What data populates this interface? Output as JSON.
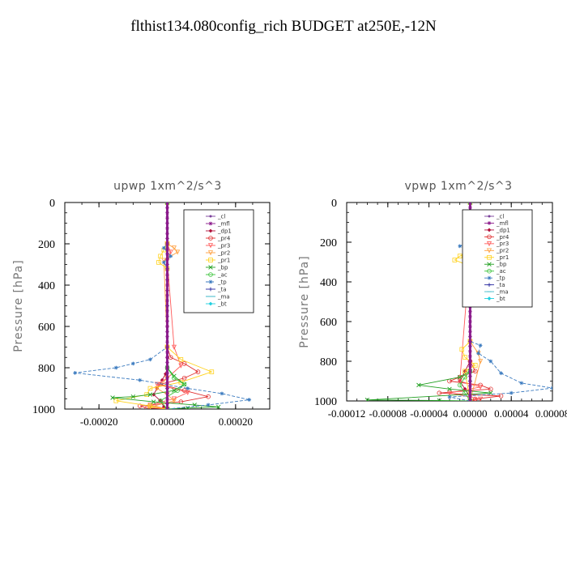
{
  "title": "flthist134.080config_rich  BUDGET at250E,-12N",
  "chart_data": [
    {
      "type": "line",
      "title": "upwp   1xm^2/s^3",
      "ylabel": "Pressure [hPa]",
      "ylim": [
        1000,
        0
      ],
      "xlim": [
        -0.0003,
        0.0003
      ],
      "xticks": [
        "-0.00020",
        "0.00000",
        "0.00020"
      ],
      "yticks": [
        "0",
        "200",
        "400",
        "600",
        "800",
        "1000"
      ],
      "legend_position": "top-right",
      "series": [
        {
          "name": "_cl",
          "color": "#7a3f9a",
          "marker": "dot",
          "dash": "",
          "x": [
            0,
            0,
            0,
            0,
            0,
            0,
            0,
            0,
            0,
            0,
            0,
            0,
            0,
            0,
            0,
            0,
            0,
            0,
            0,
            0,
            0,
            0,
            0,
            0,
            0,
            0,
            0,
            0,
            0,
            0,
            0,
            0,
            0,
            0,
            0,
            0,
            0,
            0,
            0,
            0,
            0
          ],
          "y": [
            0,
            25,
            50,
            75,
            100,
            125,
            150,
            175,
            200,
            225,
            250,
            275,
            300,
            325,
            350,
            375,
            400,
            425,
            450,
            475,
            500,
            525,
            550,
            575,
            600,
            625,
            650,
            675,
            700,
            725,
            750,
            775,
            800,
            825,
            850,
            875,
            900,
            925,
            950,
            975,
            1000
          ]
        },
        {
          "name": "_mfl",
          "color": "#8b1a8b",
          "marker": "star",
          "dash": "",
          "x": [
            0,
            0,
            0,
            0,
            0,
            0,
            0,
            0,
            0,
            0,
            0,
            0,
            0,
            0,
            0,
            0,
            0,
            0,
            0,
            0,
            0,
            0,
            0,
            0,
            0,
            0,
            0,
            0,
            0,
            0,
            0,
            0,
            0,
            0,
            0,
            0,
            0,
            0,
            0,
            0,
            0
          ],
          "y": [
            0,
            25,
            50,
            75,
            100,
            125,
            150,
            175,
            200,
            225,
            250,
            275,
            300,
            325,
            350,
            375,
            400,
            425,
            450,
            475,
            500,
            525,
            550,
            575,
            600,
            625,
            650,
            675,
            700,
            725,
            750,
            775,
            800,
            825,
            850,
            875,
            900,
            925,
            950,
            975,
            1000
          ]
        },
        {
          "name": "_dp1",
          "color": "#b0103a",
          "marker": "diamond",
          "dash": "",
          "x": [
            0,
            0,
            0,
            0,
            0,
            -5e-06,
            -1.5e-05,
            -3e-05,
            -4e-05,
            -2e-05,
            -1e-05,
            0
          ],
          "y": [
            0,
            200,
            600,
            750,
            800,
            830,
            860,
            900,
            930,
            960,
            990,
            1000
          ]
        },
        {
          "name": "_pr4",
          "color": "#e03030",
          "marker": "circle",
          "dash": "",
          "x": [
            0,
            0,
            0,
            1e-05,
            5e-05,
            9e-05,
            5e-05,
            -2e-05,
            5e-05,
            0.00012,
            4e-05,
            -8e-05,
            -6e-05,
            0
          ],
          "y": [
            0,
            200,
            700,
            750,
            780,
            820,
            850,
            880,
            910,
            940,
            965,
            985,
            995,
            1000
          ]
        },
        {
          "name": "_pr3",
          "color": "#ff5a5a",
          "marker": "tri",
          "dash": "",
          "x": [
            0,
            0,
            1e-05,
            0,
            2e-05,
            4e-05,
            0,
            -3e-05,
            6e-05,
            2e-05,
            -5e-05,
            0
          ],
          "y": [
            0,
            200,
            240,
            280,
            700,
            790,
            850,
            880,
            920,
            950,
            980,
            1000
          ]
        },
        {
          "name": "_pr2",
          "color": "#ffa040",
          "marker": "tri",
          "dash": "",
          "x": [
            0,
            0,
            2e-05,
            3e-05,
            -1e-05,
            0,
            0,
            -3e-05,
            0,
            2e-05,
            -5e-05,
            0
          ],
          "y": [
            0,
            200,
            220,
            240,
            280,
            700,
            850,
            900,
            930,
            960,
            990,
            1000
          ]
        },
        {
          "name": "_pr1",
          "color": "#ffd21e",
          "marker": "square",
          "dash": "",
          "x": [
            0,
            0,
            -1e-05,
            -2e-05,
            -2.5e-05,
            0,
            0,
            4e-05,
            0.00013,
            4e-05,
            -5e-05,
            -6e-05,
            -0.00015,
            -5e-05,
            0
          ],
          "y": [
            0,
            200,
            230,
            260,
            290,
            320,
            700,
            760,
            820,
            870,
            900,
            930,
            960,
            985,
            1000
          ]
        },
        {
          "name": "_bp",
          "color": "#22a022",
          "marker": "x",
          "dash": "",
          "x": [
            0,
            0,
            2e-05,
            5e-05,
            2e-05,
            -5e-05,
            -0.0001,
            -0.00016,
            -4e-05,
            8e-05,
            0.00015,
            6e-05,
            0
          ],
          "y": [
            0,
            800,
            840,
            880,
            910,
            930,
            940,
            945,
            965,
            980,
            990,
            995,
            1000
          ]
        },
        {
          "name": "_ac",
          "color": "#3cc43c",
          "marker": "circle",
          "dash": "",
          "x": [
            0,
            0,
            2e-05,
            5e-05,
            3e-05,
            -2e-05,
            0
          ],
          "y": [
            0,
            800,
            850,
            880,
            910,
            960,
            1000
          ]
        },
        {
          "name": "_tp",
          "color": "#3a7abf",
          "marker": "star",
          "dash": "4,2",
          "x": [
            0,
            0,
            -1e-05,
            1e-05,
            -1e-05,
            0,
            0,
            -5e-05,
            -0.0001,
            -0.00015,
            -0.00027,
            -8e-05,
            6e-05,
            0.00016,
            0.00024,
            0.00012,
            0
          ],
          "y": [
            0,
            200,
            220,
            260,
            290,
            320,
            700,
            760,
            780,
            800,
            825,
            860,
            900,
            925,
            955,
            980,
            1000
          ]
        },
        {
          "name": "_ta",
          "color": "#2a2aa0",
          "marker": "plus",
          "dash": "",
          "x": [
            0,
            0,
            0,
            0
          ],
          "y": [
            0,
            500,
            900,
            1000
          ]
        },
        {
          "name": "_ma",
          "color": "#3cb8c8",
          "marker": "dash",
          "dash": "5,3",
          "x": [
            0,
            0,
            0,
            0
          ],
          "y": [
            0,
            500,
            900,
            1000
          ]
        },
        {
          "name": "_bt",
          "color": "#20d0e0",
          "marker": "diamond",
          "dash": "",
          "x": [
            0,
            0,
            0,
            0
          ],
          "y": [
            0,
            500,
            900,
            1000
          ]
        }
      ]
    },
    {
      "type": "line",
      "title": "vpwp   1xm^2/s^3",
      "ylabel": "Pressure [hPa]",
      "ylim": [
        1000,
        0
      ],
      "xlim": [
        -0.00012,
        8e-05
      ],
      "xticks": [
        "-0.00012",
        "-0.00008",
        "-0.00004",
        "0.00000",
        "0.00004",
        "0.00008"
      ],
      "yticks": [
        "0",
        "200",
        "400",
        "600",
        "800",
        "1000"
      ],
      "legend_position": "top-right",
      "series": [
        {
          "name": "_cl",
          "color": "#7a3f9a",
          "marker": "dot",
          "dash": "",
          "x": [
            0,
            0,
            0,
            0,
            0,
            0,
            0,
            0,
            0,
            0,
            0,
            0,
            0,
            0,
            0,
            0,
            0,
            0,
            0,
            0,
            0,
            0,
            0,
            0,
            0,
            0,
            0,
            0,
            0,
            0,
            0,
            0,
            0,
            0,
            0,
            0,
            0,
            0,
            0,
            0,
            0
          ],
          "y": [
            0,
            25,
            50,
            75,
            100,
            125,
            150,
            175,
            200,
            225,
            250,
            275,
            300,
            325,
            350,
            375,
            400,
            425,
            450,
            475,
            500,
            525,
            550,
            575,
            600,
            625,
            650,
            675,
            700,
            725,
            750,
            775,
            800,
            825,
            850,
            875,
            900,
            925,
            950,
            975,
            1000
          ]
        },
        {
          "name": "_mfl",
          "color": "#8b1a8b",
          "marker": "star",
          "dash": "",
          "x": [
            0,
            0,
            0,
            0,
            0,
            0,
            0,
            0,
            0,
            0,
            0,
            0,
            0,
            0,
            0,
            0,
            0,
            0,
            0,
            0,
            0,
            0,
            0,
            0,
            0,
            0,
            0,
            0,
            0,
            0,
            0,
            0,
            0,
            0,
            0,
            0,
            0,
            0,
            0,
            0,
            0
          ],
          "y": [
            0,
            25,
            50,
            75,
            100,
            125,
            150,
            175,
            200,
            225,
            250,
            275,
            300,
            325,
            350,
            375,
            400,
            425,
            450,
            475,
            500,
            525,
            550,
            575,
            600,
            625,
            650,
            675,
            700,
            725,
            750,
            775,
            800,
            825,
            850,
            875,
            900,
            925,
            950,
            975,
            1000
          ]
        },
        {
          "name": "_dp1",
          "color": "#b0103a",
          "marker": "diamond",
          "dash": "",
          "x": [
            0,
            0,
            0,
            -5e-06,
            -1e-05,
            -5e-06,
            0,
            0
          ],
          "y": [
            0,
            200,
            800,
            850,
            900,
            940,
            980,
            1000
          ]
        },
        {
          "name": "_pr4",
          "color": "#e03030",
          "marker": "circle",
          "dash": "",
          "x": [
            0,
            0,
            0,
            5e-06,
            -1e-05,
            -2e-05,
            1e-05,
            2e-05,
            -3e-05,
            3e-05,
            5e-06,
            0
          ],
          "y": [
            0,
            200,
            800,
            850,
            880,
            900,
            920,
            940,
            960,
            975,
            990,
            1000
          ]
        },
        {
          "name": "_pr3",
          "color": "#ff5a5a",
          "marker": "tri",
          "dash": "",
          "x": [
            0,
            0,
            5e-06,
            0,
            -1e-05,
            1e-05,
            -2e-05,
            1e-05,
            0
          ],
          "y": [
            0,
            200,
            220,
            250,
            900,
            930,
            960,
            990,
            1000
          ]
        },
        {
          "name": "_pr2",
          "color": "#ffa040",
          "marker": "tri",
          "dash": "",
          "x": [
            0,
            0,
            8e-06,
            5e-06,
            -5e-06,
            0,
            0,
            8e-06,
            1e-05,
            0
          ],
          "y": [
            0,
            200,
            220,
            250,
            280,
            300,
            700,
            760,
            800,
            1000
          ]
        },
        {
          "name": "_pr1",
          "color": "#ffd21e",
          "marker": "square",
          "dash": "",
          "x": [
            0,
            0,
            1e-05,
            5e-06,
            -1e-05,
            -1.5e-05,
            -5e-06,
            0,
            0,
            -8e-06,
            -5e-06,
            5e-06,
            -5e-06,
            0
          ],
          "y": [
            0,
            200,
            210,
            240,
            270,
            290,
            310,
            330,
            700,
            740,
            780,
            820,
            850,
            1000
          ]
        },
        {
          "name": "_bp",
          "color": "#22a022",
          "marker": "x",
          "dash": "",
          "x": [
            0,
            0,
            -1e-05,
            -5e-05,
            -2e-05,
            2e-05,
            -0.0001,
            -3e-05,
            0
          ],
          "y": [
            0,
            850,
            880,
            920,
            940,
            960,
            995,
            998,
            1000
          ]
        },
        {
          "name": "_ac",
          "color": "#3cc43c",
          "marker": "circle",
          "dash": "",
          "x": [
            0,
            0,
            -5e-06,
            -1e-05,
            -5e-06,
            0
          ],
          "y": [
            0,
            850,
            880,
            920,
            960,
            1000
          ]
        },
        {
          "name": "_tp",
          "color": "#3a7abf",
          "marker": "star",
          "dash": "4,2",
          "x": [
            0,
            0,
            -1e-05,
            5e-06,
            -5e-06,
            1e-05,
            0,
            0,
            1e-05,
            8e-06,
            2e-05,
            3e-05,
            5e-05,
            8e-05,
            4e-05,
            -2e-05,
            0
          ],
          "y": [
            0,
            200,
            220,
            250,
            280,
            310,
            340,
            700,
            720,
            760,
            800,
            860,
            910,
            935,
            960,
            980,
            1000
          ]
        },
        {
          "name": "_ta",
          "color": "#2a2aa0",
          "marker": "plus",
          "dash": "",
          "x": [
            0,
            0,
            0,
            0
          ],
          "y": [
            0,
            500,
            900,
            1000
          ]
        },
        {
          "name": "_ma",
          "color": "#3cb8c8",
          "marker": "dash",
          "dash": "5,3",
          "x": [
            0,
            0,
            0,
            0
          ],
          "y": [
            0,
            500,
            900,
            1000
          ]
        },
        {
          "name": "_bt",
          "color": "#20d0e0",
          "marker": "diamond",
          "dash": "",
          "x": [
            0,
            0,
            0,
            0
          ],
          "y": [
            0,
            500,
            900,
            1000
          ]
        }
      ]
    }
  ]
}
